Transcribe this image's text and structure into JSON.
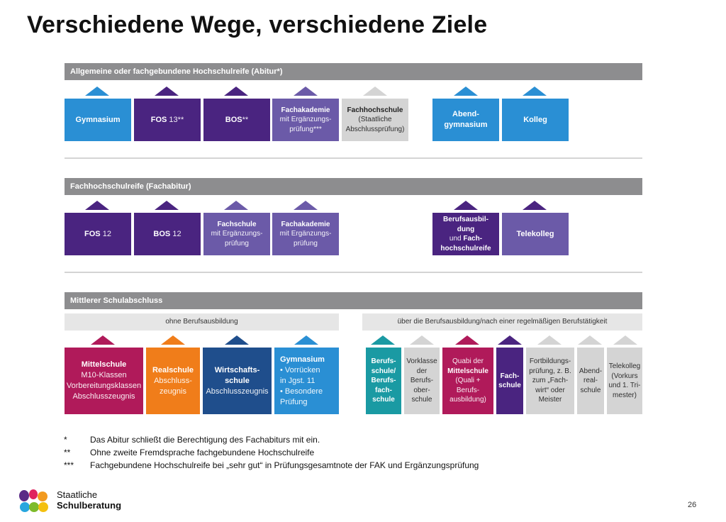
{
  "title": "Verschiedene Wege, verschiedene Ziele",
  "colors": {
    "blue": "#2a8fd4",
    "purple": "#4a2480",
    "violet": "#6b5aa8",
    "grey_bar": "#8d8d8f",
    "light_grey": "#d4d4d4",
    "magenta": "#b01a5a",
    "orange": "#f07d1a",
    "navy": "#1f4e8c",
    "teal": "#1a9aa3"
  },
  "section1": {
    "header": "Allgemeine oder fachgebundene Hochschulreife (Abitur*)",
    "boxes": [
      {
        "bold": "Gymnasium",
        "normal": ""
      },
      {
        "bold": "FOS",
        "normal": " 13**"
      },
      {
        "bold": "BOS",
        "normal": "**"
      },
      {
        "bold": "Fachakademie",
        "normal": "mit Ergänzungs-\nprüfung***"
      },
      {
        "bold": "Fachhochschule",
        "normal": "(Staatliche\nAbschlussprüfung)"
      },
      {
        "bold": "Abend-\ngymnasium",
        "normal": ""
      },
      {
        "bold": "Kolleg",
        "normal": ""
      }
    ]
  },
  "section2": {
    "header": "Fachhochschulreife (Fachabitur)",
    "boxes": [
      {
        "bold": "FOS",
        "normal": " 12"
      },
      {
        "bold": "BOS",
        "normal": " 12"
      },
      {
        "bold": "Fachschule",
        "normal": "mit Ergänzungs-\nprüfung"
      },
      {
        "bold": "Fachakademie",
        "normal": "mit Ergänzungs-\nprüfung"
      },
      {
        "bold": "Berufsausbil-\ndung",
        "normal": "und",
        "bold2": "Fach-\nhochschulreife"
      },
      {
        "bold": "Telekolleg",
        "normal": ""
      }
    ]
  },
  "section3": {
    "header": "Mittlerer Schulabschluss",
    "sub_left": "ohne Berufsausbildung",
    "sub_right": "über die Berufsausbildung/nach einer regelmäßigen Berufstätigkeit",
    "boxes": [
      {
        "bold": "Mittelschule",
        "normal": "M10-Klassen\nVorbereitungsklassen\nAbschlusszeugnis"
      },
      {
        "bold": "Realschule",
        "normal": "Abschluss-\nzeugnis"
      },
      {
        "bold": "Wirtschafts-\nschule",
        "normal": "Abschlusszeugnis"
      },
      {
        "bold": "Gymnasium",
        "normal": "• Vorrücken\n  in Jgst. 11\n• Besondere\n  Prüfung"
      },
      {
        "bold": "Berufs-\nschule/\nBerufs-\nfach-\nschule",
        "normal": ""
      },
      {
        "bold": "",
        "normal": "Vorklasse\nder\nBerufs-\nober-\nschule"
      },
      {
        "bold": "Mittelschule",
        "pre": "Quabi der",
        "normal": "(Quali +\nBerufs-\nausbildung)"
      },
      {
        "bold": "Fach-\nschule",
        "normal": ""
      },
      {
        "bold": "",
        "normal": "Fortbildungs-\nprüfung, z. B.\nzum „Fach-\nwirt“ oder\nMeister"
      },
      {
        "bold": "",
        "normal": "Abend-\nreal-\nschule"
      },
      {
        "bold": "",
        "normal": "Telekolleg\n(Vorkurs\nund 1. Tri-\nmester)"
      }
    ]
  },
  "footnotes": [
    {
      "mark": "*",
      "text": "Das Abitur schließt die Berechtigung des Fachabiturs mit ein."
    },
    {
      "mark": "**",
      "text": "Ohne zweite Fremdsprache fachgebundene Hochschulreife"
    },
    {
      "mark": "***",
      "text": "Fachgebundene Hochschulreife bei „sehr gut“ in Prüfungsgesamtnote der FAK und Ergänzungsprüfung"
    }
  ],
  "brand": {
    "line1": "Staatliche",
    "line2": "Schulberatung",
    "logo": "colorful-blob-logo"
  },
  "page_number": "26"
}
